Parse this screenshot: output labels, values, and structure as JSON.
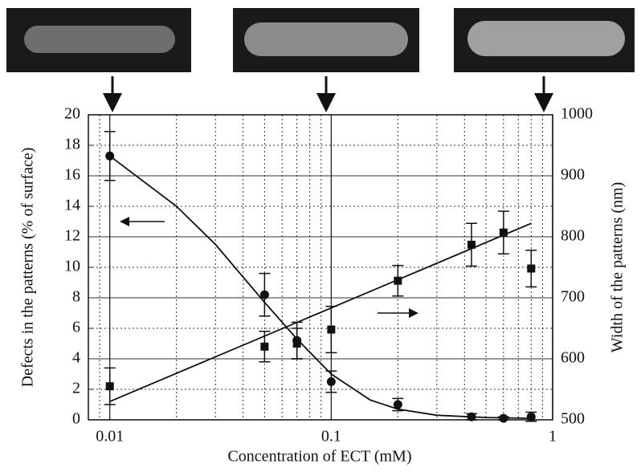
{
  "chart_data": {
    "type": "scatter",
    "xlabel": "Concentration of ECT  (mM)",
    "ylabel": "Defects in the patterns  (% of surface)",
    "y2label": "Width of the patterns  (nm)",
    "log_x": true,
    "grid": true,
    "xlim": [
      0.008,
      1
    ],
    "xticks": [
      0.01,
      0.1,
      1
    ],
    "ylim": [
      0,
      20
    ],
    "yticks": [
      0,
      2,
      4,
      6,
      8,
      10,
      12,
      14,
      16,
      18,
      20
    ],
    "y2lim": [
      500,
      1000
    ],
    "y2ticks": [
      500,
      600,
      700,
      800,
      900,
      1000
    ],
    "series": [
      {
        "marker": "circle",
        "color": "#111111",
        "x": [
          0.01,
          0.05,
          0.07,
          0.1,
          0.2,
          0.43,
          0.6,
          0.8
        ],
        "values": [
          17.3,
          8.2,
          5.2,
          2.5,
          1.0,
          0.2,
          0.1,
          0.2
        ],
        "errors": [
          1.6,
          1.4,
          1.2,
          0.7,
          0.4,
          0.2,
          0.1,
          0.3
        ]
      },
      {
        "marker": "square",
        "color": "#111111",
        "axis": "y2",
        "x": [
          0.01,
          0.05,
          0.07,
          0.1,
          0.2,
          0.43,
          0.6,
          0.8
        ],
        "values": [
          555,
          620,
          625,
          648,
          728,
          787,
          807,
          748
        ],
        "errors": [
          30,
          25,
          25,
          38,
          25,
          35,
          35,
          30
        ]
      }
    ],
    "fits": [
      {
        "x": [
          0.01,
          0.02,
          0.03,
          0.05,
          0.07,
          0.1,
          0.15,
          0.2,
          0.3,
          0.5,
          0.8
        ],
        "values": [
          17.3,
          14,
          11.5,
          7.7,
          5.3,
          3.0,
          1.3,
          0.7,
          0.3,
          0.15,
          0.1
        ]
      },
      {
        "axis": "y2",
        "x": [
          0.01,
          0.8
        ],
        "values": [
          530,
          822
        ]
      }
    ]
  }
}
